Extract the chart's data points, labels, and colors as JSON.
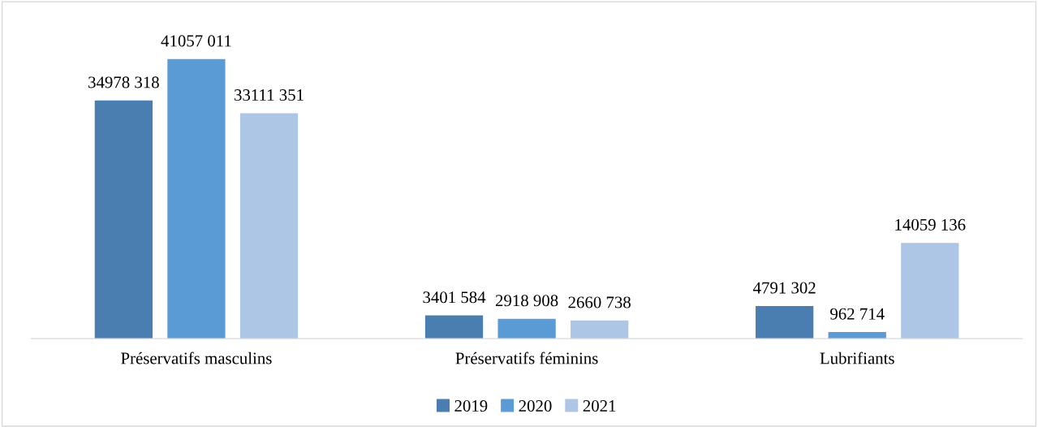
{
  "chart_data": {
    "type": "bar",
    "categories": [
      "Préservatifs masculins",
      "Préservatifs féminins",
      "Lubrifiants"
    ],
    "series": [
      {
        "name": "2019",
        "color": "#4a7eb0",
        "values": [
          34978318,
          3401584,
          4791302
        ],
        "value_labels": [
          "34978 318",
          "3401 584",
          "4791 302"
        ]
      },
      {
        "name": "2020",
        "color": "#5b9bd5",
        "values": [
          41057011,
          2918908,
          962714
        ],
        "value_labels": [
          "41057 011",
          "2918 908",
          "962 714"
        ]
      },
      {
        "name": "2021",
        "color": "#adc6e5",
        "values": [
          33111351,
          2660738,
          14059136
        ],
        "value_labels": [
          "33111 351",
          "2660 738",
          "14059 136"
        ]
      }
    ],
    "tick_labels": "x",
    "grid": false,
    "legend": "bottom"
  }
}
